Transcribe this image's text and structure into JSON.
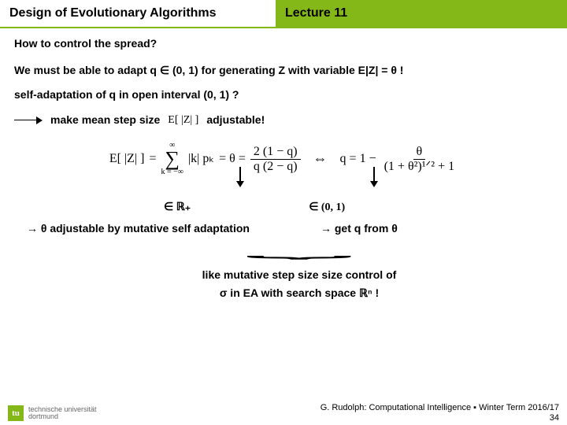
{
  "header": {
    "title_left": "Design of Evolutionary Algorithms",
    "title_right": "Lecture 11",
    "accent_color": "#84b818"
  },
  "subtitle": "How to control the spread?",
  "line_adapt": "We must be able to adapt q ∈ (0, 1) for generating Z with variable E|Z| = θ  !",
  "line_self": "self-adaptation of q in open interval (0, 1) ?",
  "mean_left": "make mean step size",
  "mean_expr": "E[ |Z| ]",
  "mean_right": "adjustable!",
  "formula": {
    "lhs": "E[ |Z| ]",
    "eq1": "=",
    "sum_top": "∞",
    "sum_bot": "k = −∞",
    "sum_body": "|k| pₖ",
    "eq2": "= θ =",
    "frac1_num": "2 (1 − q)",
    "frac1_den": "q (2 − q)",
    "iff": "⇔",
    "rhs_pre": "q = 1 −",
    "frac2_num": "θ",
    "frac2_den": "(1 + θ²)¹ᐟ² + 1"
  },
  "range_left": "∈ ℝ₊",
  "range_right": "∈ (0, 1)",
  "concl_left": "→ θ adjustable by mutative self adaptation",
  "concl_right": "→ get q from θ",
  "brace_line1": "like mutative step size size control of",
  "brace_line2": "σ in EA with search space ℝⁿ !",
  "footer": {
    "univ1": "technische universität",
    "univ2": "dortmund",
    "credit": "G. Rudolph: Computational Intelligence ▪ Winter Term 2016/17",
    "page": "34",
    "logo_text": "tu"
  }
}
